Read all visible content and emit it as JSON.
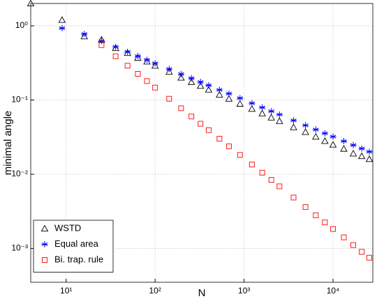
{
  "chart_data": {
    "type": "scatter",
    "xlabel": "N",
    "ylabel": "minimal angle",
    "xscale": "log",
    "yscale": "log",
    "grid": true,
    "legend": "lower left",
    "xlim": [
      4,
      28000
    ],
    "ylim": [
      0.00035,
      2
    ],
    "xticks": [
      {
        "value": 10,
        "label": "10¹"
      },
      {
        "value": 100,
        "label": "10²"
      },
      {
        "value": 1000,
        "label": "10³"
      },
      {
        "value": 10000,
        "label": "10⁴"
      }
    ],
    "yticks": [
      {
        "value": 0.001,
        "label": "10⁻³"
      },
      {
        "value": 0.01,
        "label": "10⁻²"
      },
      {
        "value": 0.1,
        "label": "10⁻¹"
      },
      {
        "value": 1,
        "label": "10⁰"
      }
    ],
    "x": [
      4,
      9,
      16,
      25,
      36,
      49,
      64,
      81,
      100,
      144,
      196,
      256,
      324,
      400,
      529,
      676,
      900,
      1225,
      1600,
      2025,
      2500,
      3600,
      4900,
      6400,
      8100,
      10000,
      13225,
      16900,
      21025,
      25600
    ],
    "series": [
      {
        "name": "WSTD",
        "color": "#000000",
        "marker": "triangle",
        "values": [
          2,
          1.2,
          0.72,
          0.65,
          0.5,
          0.43,
          0.37,
          0.33,
          0.29,
          0.24,
          0.2,
          0.175,
          0.155,
          0.138,
          0.118,
          0.104,
          0.089,
          0.076,
          0.066,
          0.058,
          0.052,
          0.043,
          0.037,
          0.032,
          0.028,
          0.025,
          0.022,
          0.019,
          0.0175,
          0.016
        ]
      },
      {
        "name": "Equal area",
        "color": "#0000ff",
        "marker": "asterisk",
        "values": [
          null,
          0.93,
          0.776,
          0.622,
          0.52,
          0.446,
          0.391,
          0.348,
          0.313,
          0.262,
          0.224,
          0.197,
          0.175,
          0.158,
          0.137,
          0.122,
          0.106,
          0.0906,
          0.0794,
          0.0706,
          0.0637,
          0.0531,
          0.0456,
          0.04,
          0.0356,
          0.0321,
          0.0279,
          0.0247,
          0.0222,
          0.0201
        ]
      },
      {
        "name": "Bi. trap. rule",
        "color": "#ff0000",
        "marker": "square",
        "values": [
          null,
          null,
          null,
          0.55,
          0.389,
          0.29,
          0.225,
          0.18,
          0.147,
          0.104,
          0.0774,
          0.06,
          0.0479,
          0.0393,
          0.0301,
          0.0238,
          0.0182,
          0.0135,
          0.0105,
          0.0084,
          0.00686,
          0.00485,
          0.00361,
          0.0028,
          0.00224,
          0.00183,
          0.00141,
          0.00111,
          0.0009,
          0.00075
        ]
      }
    ]
  }
}
